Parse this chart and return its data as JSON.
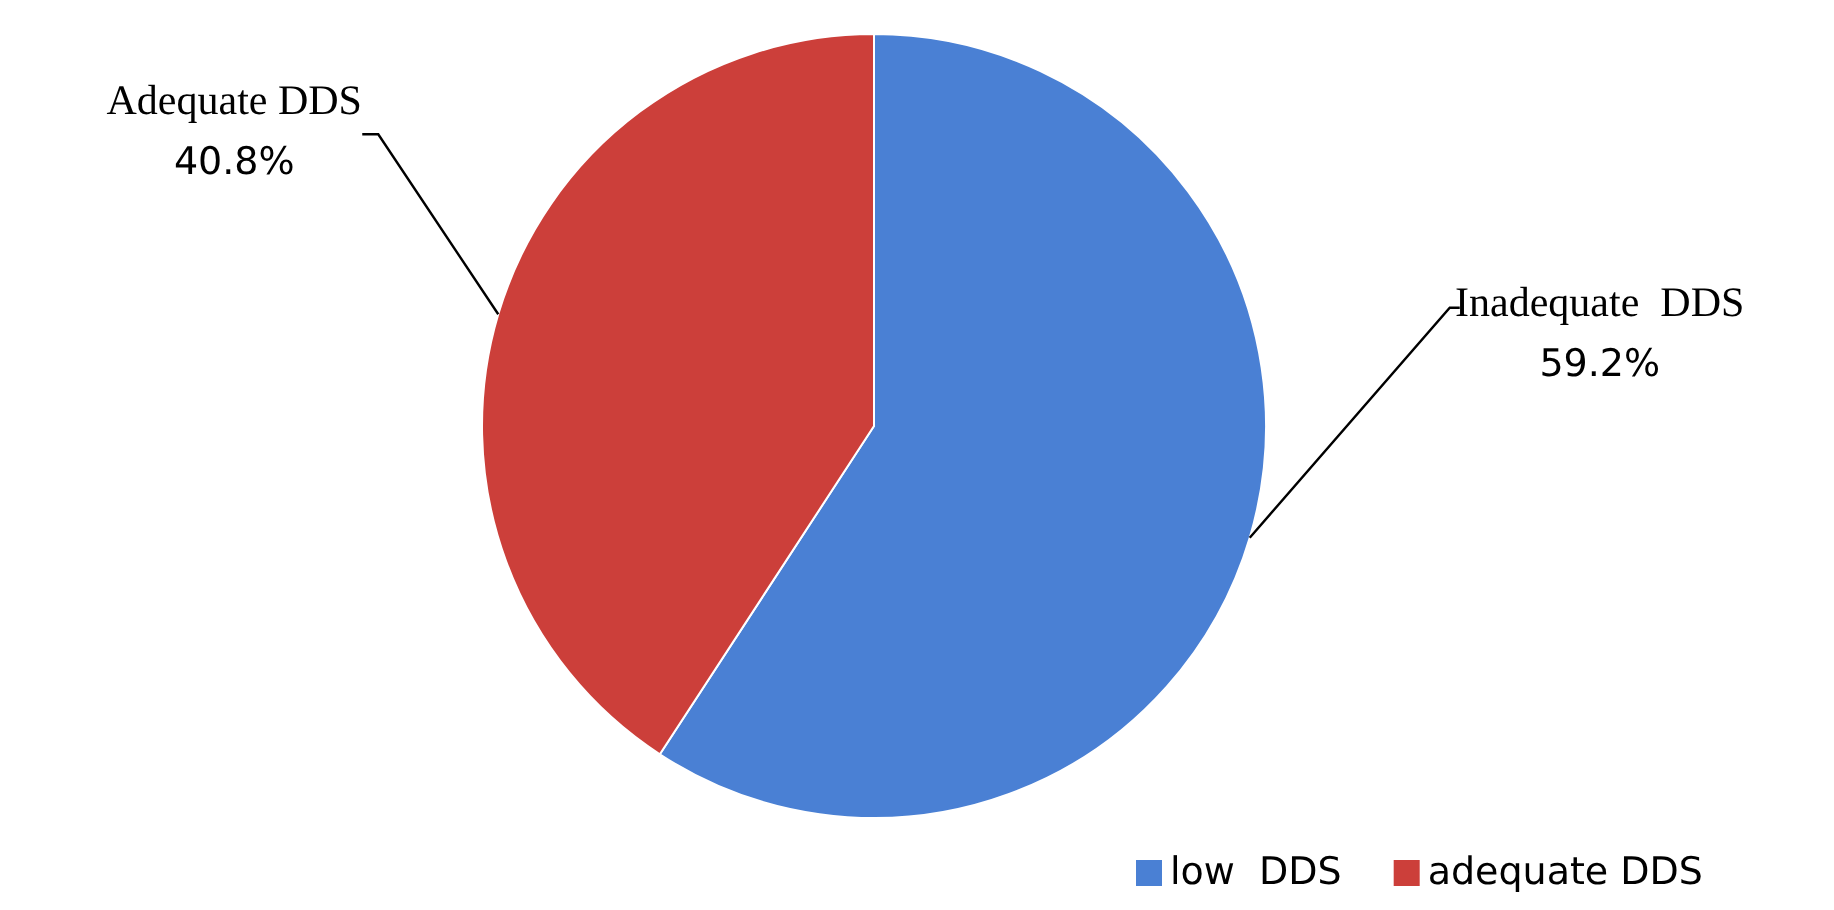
{
  "chart_data": {
    "type": "pie",
    "categories": [
      "low  DDS",
      "adequate DDS"
    ],
    "values": [
      59.2,
      40.8
    ],
    "colors": [
      "#4a80d4",
      "#cc3f3a"
    ],
    "value_labels": [
      "59.2%",
      "40.8%"
    ],
    "annotations": [
      "Inadequate  DDS",
      "Adequate DDS"
    ],
    "legend": "bottom right"
  }
}
